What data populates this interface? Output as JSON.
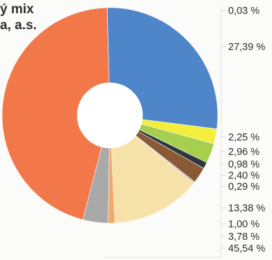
{
  "chart_data": {
    "type": "pie",
    "donut": true,
    "title_lines": [
      "ý mix",
      "a, a.s."
    ],
    "slices": [
      {
        "label": "0,03 %",
        "value": 0.03,
        "color": "#6e6e6e"
      },
      {
        "label": "27,39 %",
        "value": 27.39,
        "color": "#4f86c9"
      },
      {
        "label": "2,25 %",
        "value": 2.25,
        "color": "#f3ee3c"
      },
      {
        "label": "2,96 %",
        "value": 2.96,
        "color": "#a5cf4d"
      },
      {
        "label": "0,98 %",
        "value": 0.98,
        "color": "#2e3640"
      },
      {
        "label": "2,40 %",
        "value": 2.4,
        "color": "#8a5a34"
      },
      {
        "label": "0,29 %",
        "value": 0.29,
        "color": "#c9c9c2"
      },
      {
        "label": "13,38 %",
        "value": 13.38,
        "color": "#f6e2a9"
      },
      {
        "label": "1,00 %",
        "value": 1.0,
        "color": "#f4a86a"
      },
      {
        "label": "3,78 %",
        "value": 3.78,
        "color": "#a9a9a9"
      },
      {
        "label": "45,54 %",
        "value": 45.54,
        "color": "#f2784a"
      }
    ]
  }
}
